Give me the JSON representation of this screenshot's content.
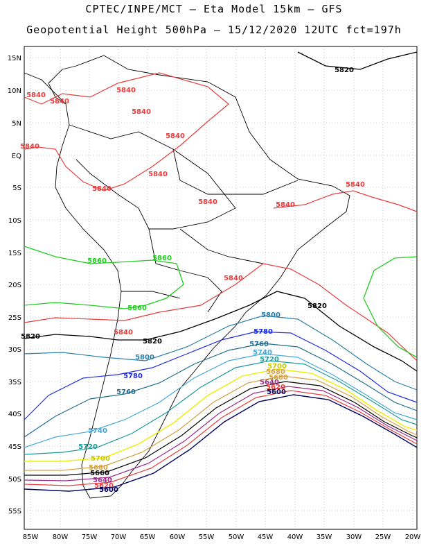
{
  "header": {
    "line1": "CPTEC/INPE/MCT –  Eta Model 15km – GFS",
    "line2": "Geopotential Height 500hPa – 15/12/2020 12UTC fct=197h"
  },
  "axes": {
    "lat_labels": [
      "15N",
      "10N",
      "5N",
      "EQ",
      "5S",
      "10S",
      "15S",
      "20S",
      "25S",
      "30S",
      "35S",
      "40S",
      "45S",
      "50S",
      "55S"
    ],
    "lon_labels": [
      "85W",
      "80W",
      "75W",
      "70W",
      "65W",
      "60W",
      "55W",
      "50W",
      "45W",
      "40W",
      "35W",
      "30W",
      "25W",
      "20W"
    ]
  },
  "contours": [
    {
      "value": "5840",
      "color": "#e83c3c"
    },
    {
      "value": "5820",
      "color": "#000000"
    },
    {
      "value": "5860",
      "color": "#22cc22"
    },
    {
      "value": "5800",
      "color": "#2a7fa8"
    },
    {
      "value": "5780",
      "color": "#1e2de0"
    },
    {
      "value": "5760",
      "color": "#1f6e8c"
    },
    {
      "value": "5740",
      "color": "#44a8d8"
    },
    {
      "value": "5720",
      "color": "#1a9a9a"
    },
    {
      "value": "5700",
      "color": "#eeee00"
    },
    {
      "value": "5680",
      "color": "#d4a040"
    },
    {
      "value": "5660",
      "color": "#000000"
    },
    {
      "value": "5640",
      "color": "#9a2a8a"
    },
    {
      "value": "5620",
      "color": "#e83c3c"
    },
    {
      "value": "5600",
      "color": "#000060"
    }
  ]
}
